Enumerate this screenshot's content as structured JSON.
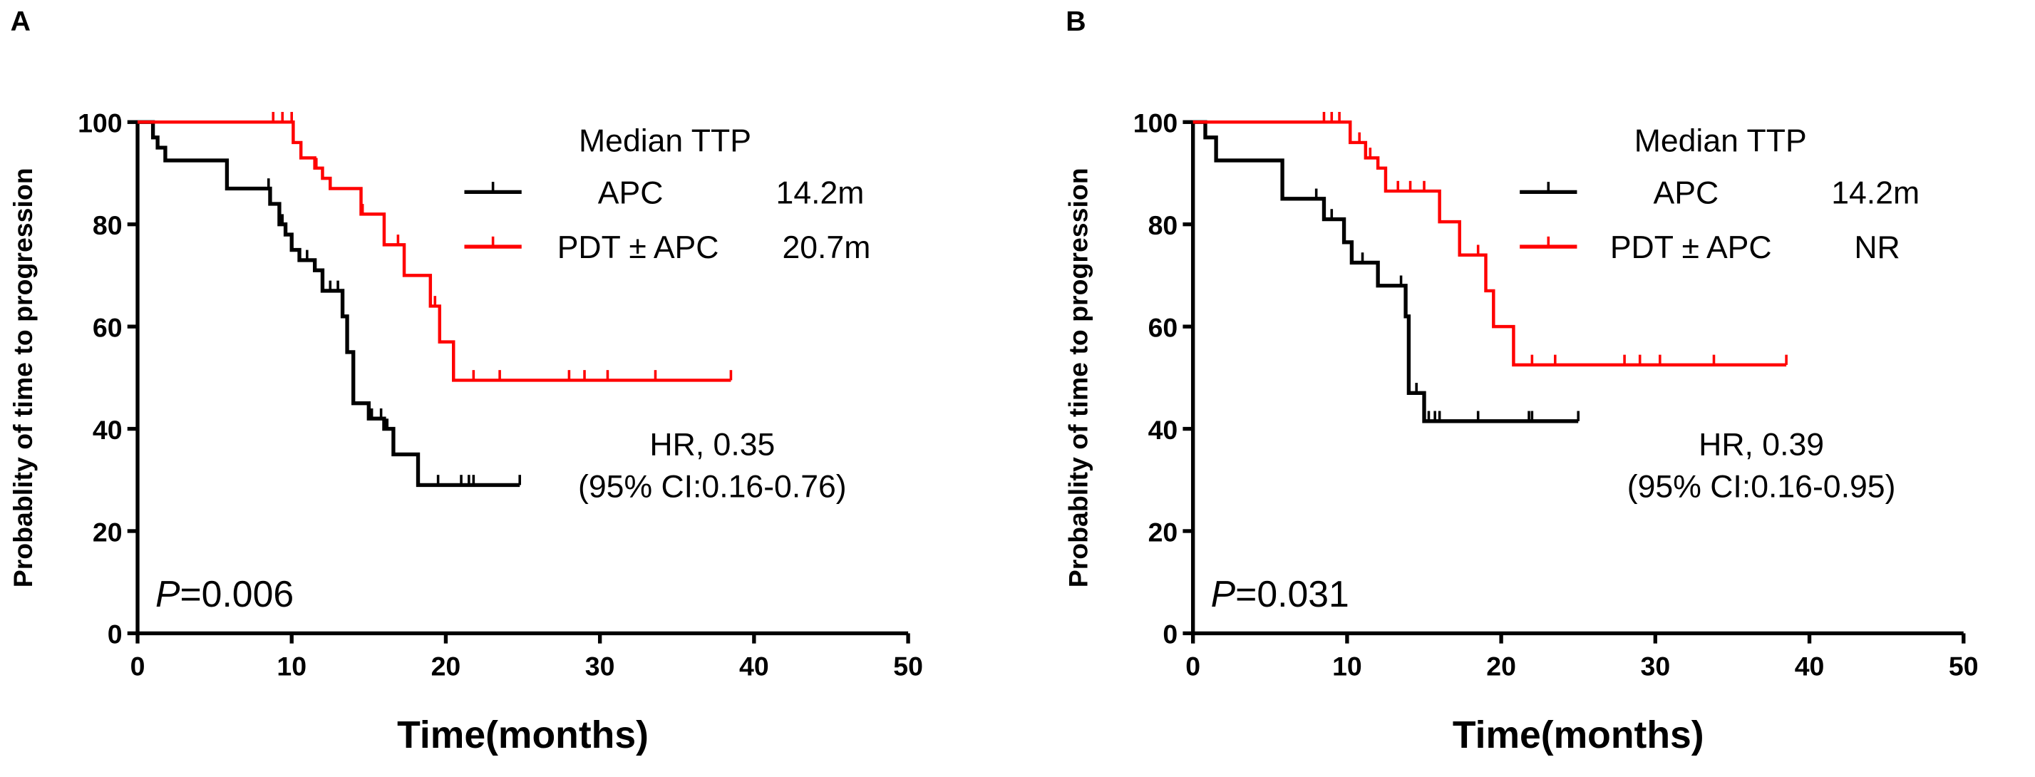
{
  "chart_data": [
    {
      "type": "line",
      "subtype": "kaplan-meier",
      "panel": "A",
      "xlabel": "Time(months)",
      "ylabel": "Probablity of time to progression",
      "xlim": [
        0,
        50
      ],
      "ylim": [
        0,
        100
      ],
      "xticks": [
        0,
        10,
        20,
        30,
        40,
        50
      ],
      "yticks": [
        0,
        20,
        40,
        60,
        80,
        100
      ],
      "legend": {
        "title": "Median TTP",
        "placement": "top-right"
      },
      "series": [
        {
          "name": "APC",
          "median": "14.2m",
          "color": "#000000",
          "steps": [
            [
              0,
              100
            ],
            [
              1,
              97
            ],
            [
              1.3,
              95
            ],
            [
              1.8,
              92.5
            ],
            [
              5.8,
              87
            ],
            [
              8.6,
              84
            ],
            [
              9.2,
              80
            ],
            [
              9.6,
              78
            ],
            [
              10,
              75
            ],
            [
              10.5,
              73
            ],
            [
              11.5,
              71
            ],
            [
              12,
              67
            ],
            [
              13.3,
              62
            ],
            [
              13.6,
              55
            ],
            [
              14,
              45
            ],
            [
              15,
              42
            ],
            [
              16,
              40
            ],
            [
              16.6,
              35
            ],
            [
              18.2,
              29
            ]
          ],
          "end": 24.8,
          "censored": [
            8.5,
            9.4,
            11,
            12.5,
            13,
            15.2,
            15.8,
            16.2,
            19.5,
            21,
            21.5,
            21.8,
            24.8
          ]
        },
        {
          "name": "PDT ± APC",
          "median": "20.7m",
          "color": "#ff0000",
          "steps": [
            [
              0,
              100
            ],
            [
              10.1,
              96
            ],
            [
              10.6,
              93
            ],
            [
              11.5,
              91
            ],
            [
              12,
              89
            ],
            [
              12.5,
              87
            ],
            [
              14.5,
              82
            ],
            [
              16,
              76
            ],
            [
              17.3,
              70
            ],
            [
              19,
              64
            ],
            [
              19.6,
              57
            ],
            [
              20.5,
              49.5
            ]
          ],
          "end": 38.5,
          "censored": [
            8.8,
            9.4,
            10,
            10.6,
            11.6,
            14.6,
            16.9,
            19.3,
            21.8,
            23.5,
            28,
            29,
            30.5,
            33.6,
            38.5
          ]
        }
      ],
      "annotations": {
        "hr": "HR, 0.35",
        "ci": "(95% CI:0.16-0.76)",
        "p_label": "P",
        "p_value": "=0.006"
      }
    },
    {
      "type": "line",
      "subtype": "kaplan-meier",
      "panel": "B",
      "xlabel": "Time(months)",
      "ylabel": "Probablity of time to progression",
      "xlim": [
        0,
        50
      ],
      "ylim": [
        0,
        100
      ],
      "xticks": [
        0,
        10,
        20,
        30,
        40,
        50
      ],
      "yticks": [
        0,
        20,
        40,
        60,
        80,
        100
      ],
      "legend": {
        "title": "Median TTP",
        "placement": "top-right"
      },
      "series": [
        {
          "name": "APC",
          "median": "14.2m",
          "color": "#000000",
          "steps": [
            [
              0,
              100
            ],
            [
              0.8,
              97
            ],
            [
              1.5,
              92.5
            ],
            [
              5.8,
              85
            ],
            [
              8.5,
              81
            ],
            [
              9.8,
              76.5
            ],
            [
              10.3,
              72.5
            ],
            [
              12,
              68
            ],
            [
              13.8,
              62
            ],
            [
              14,
              47
            ],
            [
              15,
              41.5
            ]
          ],
          "end": 25,
          "censored": [
            8,
            9,
            11,
            13.5,
            14.5,
            15.3,
            15.7,
            16,
            18.5,
            21.8,
            22,
            25
          ]
        },
        {
          "name": "PDT ± APC",
          "median": "NR",
          "color": "#ff0000",
          "steps": [
            [
              0,
              100
            ],
            [
              10.2,
              96
            ],
            [
              11.2,
              93
            ],
            [
              12,
              91
            ],
            [
              12.5,
              86.5
            ],
            [
              16,
              80.5
            ],
            [
              17.3,
              74
            ],
            [
              19,
              67
            ],
            [
              19.5,
              60
            ],
            [
              20.8,
              52.5
            ]
          ],
          "end": 38.5,
          "censored": [
            8.5,
            9,
            9.5,
            10.2,
            10.8,
            11.5,
            13.3,
            14.1,
            15,
            18.5,
            22,
            23.5,
            28,
            29,
            30.3,
            33.8,
            38.5
          ]
        }
      ],
      "annotations": {
        "hr": "HR, 0.39",
        "ci": "(95% CI:0.16-0.95)",
        "p_label": "P",
        "p_value": "=0.031"
      }
    }
  ]
}
